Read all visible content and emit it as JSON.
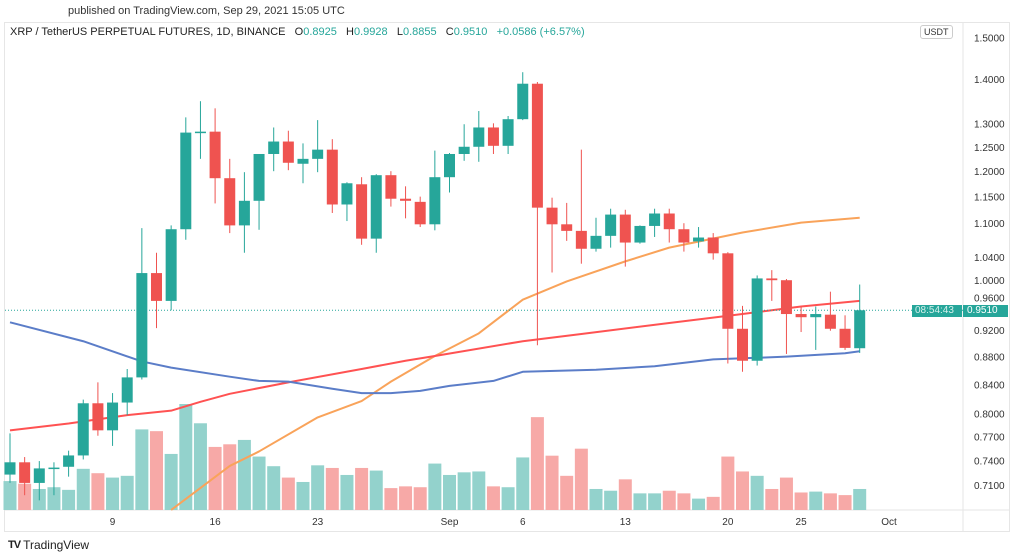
{
  "header": {
    "published": "published on TradingView.com, Sep 29, 2021 15:05 UTC",
    "symbol": "XRP / TetherUS PERPETUAL FUTURES, 1D, BINANCE",
    "o_label": "O",
    "o": "0.8925",
    "h_label": "H",
    "h": "0.9928",
    "l_label": "L",
    "l": "0.8855",
    "c_label": "C",
    "c": "0.9510",
    "change": "+0.0586 (+6.57%)"
  },
  "currency_button": "USDT",
  "last_price": {
    "price": "0.9510",
    "countdown": "08:54:43"
  },
  "footer": {
    "brand": "TradingView"
  },
  "colors": {
    "up": "#26a69a",
    "down": "#ef5350",
    "vol_up": "#93d2cc",
    "vol_down": "#f7a9a7",
    "ma_orange": "#f9a35a",
    "ma_red": "#ff5252",
    "ma_blue": "#5b7dc8"
  },
  "chart_data": {
    "type": "candlestick",
    "title": "XRP / TetherUS PERPETUAL FUTURES, 1D, BINANCE",
    "y_scale": "log",
    "ylim": [
      0.66,
      1.52
    ],
    "y_ticks": [
      "1.5000",
      "1.4000",
      "1.3000",
      "1.2500",
      "1.2000",
      "1.1500",
      "1.1000",
      "1.0400",
      "1.0000",
      "0.9600",
      "0.9200",
      "0.8800",
      "0.8400",
      "0.8000",
      "0.7700",
      "0.7400",
      "0.7100"
    ],
    "x_ticks": [
      {
        "label": "9",
        "day": 7
      },
      {
        "label": "16",
        "day": 14
      },
      {
        "label": "23",
        "day": 21
      },
      {
        "label": "Sep",
        "day": 30
      },
      {
        "label": "6",
        "day": 35
      },
      {
        "label": "13",
        "day": 42
      },
      {
        "label": "20",
        "day": 49
      },
      {
        "label": "25",
        "day": 54
      },
      {
        "label": "Oct",
        "day": 60
      }
    ],
    "first_date": "Aug 2",
    "candles_ohlcv": [
      [
        0.7225,
        0.774,
        0.7125,
        0.7375,
        33
      ],
      [
        0.7375,
        0.744,
        0.698,
        0.7125,
        30
      ],
      [
        0.7125,
        0.739,
        0.692,
        0.73,
        24
      ],
      [
        0.73,
        0.7375,
        0.698,
        0.731,
        26
      ],
      [
        0.732,
        0.752,
        0.72,
        0.746,
        23
      ],
      [
        0.746,
        0.819,
        0.741,
        0.814,
        47
      ],
      [
        0.814,
        0.843,
        0.771,
        0.778,
        42
      ],
      [
        0.778,
        0.828,
        0.758,
        0.815,
        37
      ],
      [
        0.815,
        0.862,
        0.798,
        0.85,
        39
      ],
      [
        0.85,
        1.091,
        0.847,
        1.012,
        92
      ],
      [
        1.012,
        1.047,
        0.923,
        0.966,
        90
      ],
      [
        0.966,
        1.096,
        0.951,
        1.089,
        64
      ],
      [
        1.089,
        1.313,
        1.07,
        1.28,
        121
      ],
      [
        1.28,
        1.349,
        1.225,
        1.282,
        99
      ],
      [
        1.282,
        1.333,
        1.137,
        1.186,
        72
      ],
      [
        1.186,
        1.225,
        1.082,
        1.096,
        75
      ],
      [
        1.096,
        1.198,
        1.047,
        1.142,
        80
      ],
      [
        1.142,
        1.235,
        1.088,
        1.235,
        61
      ],
      [
        1.235,
        1.291,
        1.2,
        1.261,
        50
      ],
      [
        1.261,
        1.284,
        1.202,
        1.217,
        37
      ],
      [
        1.215,
        1.257,
        1.176,
        1.225,
        32
      ],
      [
        1.225,
        1.307,
        1.198,
        1.244,
        51
      ],
      [
        1.244,
        1.266,
        1.119,
        1.135,
        48
      ],
      [
        1.135,
        1.178,
        1.104,
        1.176,
        40
      ],
      [
        1.174,
        1.188,
        1.061,
        1.072,
        48
      ],
      [
        1.072,
        1.194,
        1.047,
        1.192,
        45
      ],
      [
        1.192,
        1.2,
        1.131,
        1.146,
        25
      ],
      [
        1.146,
        1.17,
        1.109,
        1.142,
        27
      ],
      [
        1.14,
        1.15,
        1.093,
        1.098,
        26
      ],
      [
        1.098,
        1.242,
        1.087,
        1.188,
        53
      ],
      [
        1.188,
        1.237,
        1.158,
        1.235,
        40
      ],
      [
        1.235,
        1.298,
        1.221,
        1.25,
        43
      ],
      [
        1.25,
        1.327,
        1.219,
        1.291,
        44
      ],
      [
        1.291,
        1.3,
        1.235,
        1.252,
        27
      ],
      [
        1.252,
        1.316,
        1.235,
        1.309,
        26
      ],
      [
        1.309,
        1.416,
        1.307,
        1.389,
        60
      ],
      [
        1.389,
        1.393,
        0.897,
        1.129,
        106
      ],
      [
        1.129,
        1.148,
        1.013,
        1.098,
        62
      ],
      [
        1.098,
        1.138,
        1.068,
        1.086,
        39
      ],
      [
        1.086,
        1.244,
        1.028,
        1.054,
        70
      ],
      [
        1.054,
        1.11,
        1.049,
        1.077,
        24
      ],
      [
        1.077,
        1.127,
        1.056,
        1.116,
        22
      ],
      [
        1.116,
        1.125,
        1.023,
        1.065,
        35
      ],
      [
        1.065,
        1.096,
        1.063,
        1.095,
        19
      ],
      [
        1.095,
        1.127,
        1.075,
        1.118,
        19
      ],
      [
        1.118,
        1.127,
        1.065,
        1.089,
        22
      ],
      [
        1.089,
        1.1,
        1.049,
        1.065,
        19
      ],
      [
        1.067,
        1.093,
        1.056,
        1.074,
        13
      ],
      [
        1.074,
        1.082,
        1.035,
        1.046,
        15
      ],
      [
        1.046,
        1.048,
        0.87,
        0.922,
        61
      ],
      [
        0.922,
        0.958,
        0.858,
        0.874,
        44
      ],
      [
        0.874,
        1.008,
        0.867,
        1.003,
        39
      ],
      [
        1.003,
        1.017,
        0.966,
        1.0,
        24
      ],
      [
        1.0,
        1.002,
        0.884,
        0.945,
        37
      ],
      [
        0.945,
        0.957,
        0.917,
        0.94,
        20
      ],
      [
        0.94,
        0.957,
        0.89,
        0.945,
        21
      ],
      [
        0.944,
        0.981,
        0.919,
        0.922,
        19
      ],
      [
        0.922,
        0.943,
        0.89,
        0.893,
        17
      ],
      [
        0.8925,
        0.9928,
        0.8855,
        0.951,
        24
      ]
    ],
    "moving_averages": [
      {
        "name": "orange-ma",
        "color_key": "ma_orange",
        "points": [
          [
            11,
            0.681
          ],
          [
            15,
            0.733
          ],
          [
            17,
            0.751
          ],
          [
            21,
            0.795
          ],
          [
            24,
            0.817
          ],
          [
            26,
            0.844
          ],
          [
            29,
            0.881
          ],
          [
            32,
            0.915
          ],
          [
            35,
            0.968
          ],
          [
            38,
            0.998
          ],
          [
            42,
            1.032
          ],
          [
            45,
            1.056
          ],
          [
            50,
            1.083
          ],
          [
            54,
            1.101
          ],
          [
            58,
            1.11
          ]
        ]
      },
      {
        "name": "red-ma",
        "color_key": "ma_red",
        "points": [
          [
            0,
            0.778
          ],
          [
            4,
            0.787
          ],
          [
            8,
            0.798
          ],
          [
            11,
            0.804
          ],
          [
            13,
            0.816
          ],
          [
            15,
            0.827
          ],
          [
            19,
            0.843
          ],
          [
            24,
            0.862
          ],
          [
            27,
            0.874
          ],
          [
            29,
            0.881
          ],
          [
            35,
            0.903
          ],
          [
            39,
            0.914
          ],
          [
            45,
            0.931
          ],
          [
            50,
            0.945
          ],
          [
            54,
            0.957
          ],
          [
            58,
            0.966
          ]
        ]
      },
      {
        "name": "blue-ma",
        "color_key": "ma_blue",
        "points": [
          [
            0,
            0.932
          ],
          [
            5,
            0.903
          ],
          [
            9,
            0.873
          ],
          [
            11,
            0.864
          ],
          [
            15,
            0.851
          ],
          [
            17,
            0.845
          ],
          [
            19,
            0.844
          ],
          [
            22,
            0.834
          ],
          [
            24,
            0.828
          ],
          [
            26,
            0.828
          ],
          [
            28,
            0.831
          ],
          [
            30,
            0.838
          ],
          [
            33,
            0.845
          ],
          [
            35,
            0.858
          ],
          [
            40,
            0.861
          ],
          [
            44,
            0.866
          ],
          [
            48,
            0.876
          ],
          [
            53,
            0.88
          ],
          [
            57,
            0.885
          ],
          [
            58,
            0.888
          ]
        ]
      }
    ],
    "last_price_line": 0.951
  }
}
